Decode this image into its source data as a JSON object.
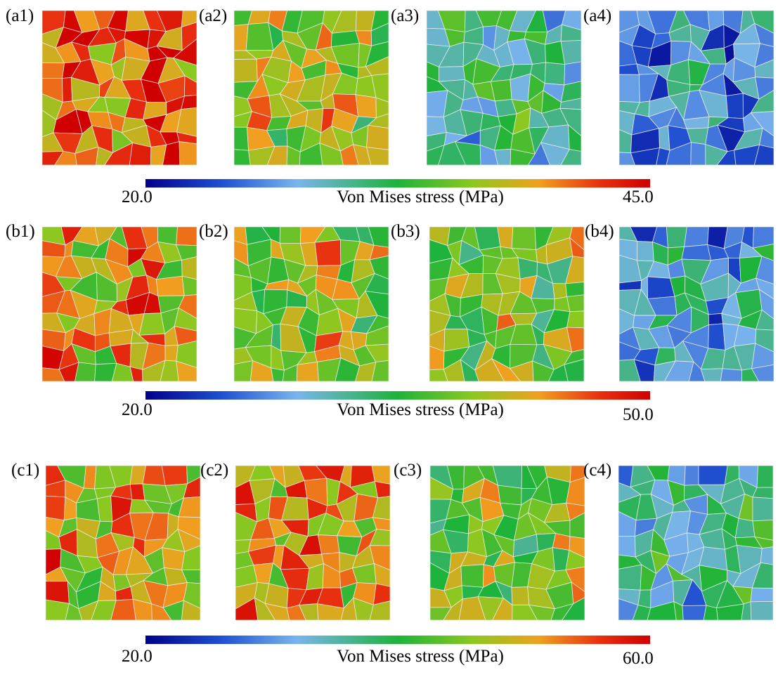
{
  "rows": [
    {
      "panels": [
        "(a1)",
        "(a2)",
        "(a3)",
        "(a4)"
      ],
      "colorbar": {
        "min": "20.0",
        "label": "Von Mises stress (MPa)",
        "max": "45.0"
      }
    },
    {
      "panels": [
        "(b1)",
        "(b2)",
        "(b3)",
        "(b4)"
      ],
      "colorbar": {
        "min": "20.0",
        "label": "Von Mises stress (MPa)",
        "max": "50.0"
      }
    },
    {
      "panels": [
        "(c1)",
        "(c2)",
        "(c3)",
        "(c4)"
      ],
      "colorbar": {
        "min": "20.0",
        "label": "Von Mises stress (MPa)",
        "max": "60.0"
      }
    }
  ]
}
